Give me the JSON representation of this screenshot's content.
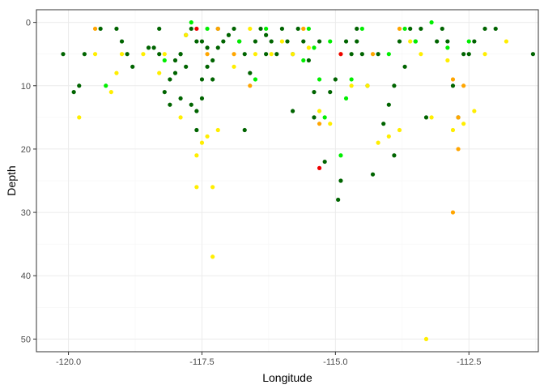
{
  "chart_data": {
    "type": "scatter",
    "xlabel": "Longitude",
    "ylabel": "Depth",
    "xlim": [
      -120.6,
      -111.2
    ],
    "ylim": [
      -2,
      52
    ],
    "y_reversed": true,
    "x_ticks": [
      -120.0,
      -117.5,
      -115.0,
      -112.5
    ],
    "x_tick_labels": [
      "-120.0",
      "-117.5",
      "-115.0",
      "-112.5"
    ],
    "y_ticks": [
      0,
      10,
      20,
      30,
      40,
      50
    ],
    "y_tick_labels": [
      "0",
      "10",
      "20",
      "30",
      "40",
      "50"
    ],
    "grid": true,
    "legend": "none",
    "colors": {
      "dark_green": "#006400",
      "lime": "#00ee00",
      "yellow": "#ffee00",
      "orange": "#ffa500",
      "red": "#ee0000",
      "panel_border": "#333333",
      "grid_major": "#ebebeb",
      "grid_minor": "#f5f5f5"
    },
    "series": [
      {
        "color": "dark_green",
        "points": [
          [
            -120.1,
            5
          ],
          [
            -119.9,
            11
          ],
          [
            -119.8,
            10
          ],
          [
            -119.7,
            5
          ],
          [
            -119.4,
            1
          ],
          [
            -119.1,
            1
          ],
          [
            -119.0,
            3
          ],
          [
            -118.9,
            5
          ],
          [
            -118.8,
            7
          ],
          [
            -118.5,
            4
          ],
          [
            -118.3,
            1
          ],
          [
            -118.4,
            4
          ],
          [
            -118.3,
            5
          ],
          [
            -118.2,
            11
          ],
          [
            -118.1,
            9
          ],
          [
            -118.0,
            6
          ],
          [
            -117.9,
            5
          ],
          [
            -117.8,
            7
          ],
          [
            -117.7,
            13
          ],
          [
            -117.6,
            17
          ],
          [
            -117.5,
            3
          ],
          [
            -117.4,
            4
          ],
          [
            -117.6,
            3
          ],
          [
            -117.7,
            1
          ],
          [
            -117.8,
            2
          ],
          [
            -118.0,
            8
          ],
          [
            -117.9,
            12
          ],
          [
            -117.6,
            14
          ],
          [
            -117.5,
            12
          ],
          [
            -117.4,
            7
          ],
          [
            -117.3,
            6
          ],
          [
            -117.2,
            4
          ],
          [
            -117.1,
            3
          ],
          [
            -117.0,
            2
          ],
          [
            -116.9,
            1
          ],
          [
            -116.8,
            3
          ],
          [
            -116.7,
            5
          ],
          [
            -116.6,
            8
          ],
          [
            -116.5,
            3
          ],
          [
            -116.4,
            1
          ],
          [
            -116.3,
            2
          ],
          [
            -116.2,
            3
          ],
          [
            -116.0,
            1
          ],
          [
            -115.9,
            3
          ],
          [
            -115.8,
            5
          ],
          [
            -115.7,
            1
          ],
          [
            -115.6,
            3
          ],
          [
            -115.5,
            6
          ],
          [
            -115.4,
            11
          ],
          [
            -115.3,
            3
          ],
          [
            -115.2,
            22
          ],
          [
            -115.1,
            11
          ],
          [
            -115.0,
            9
          ],
          [
            -114.9,
            25
          ],
          [
            -114.95,
            28
          ],
          [
            -114.8,
            3
          ],
          [
            -114.7,
            5
          ],
          [
            -114.6,
            1
          ],
          [
            -114.5,
            5
          ],
          [
            -114.4,
            10
          ],
          [
            -114.3,
            24
          ],
          [
            -114.2,
            5
          ],
          [
            -114.0,
            13
          ],
          [
            -113.9,
            21
          ],
          [
            -113.8,
            3
          ],
          [
            -113.7,
            7
          ],
          [
            -113.6,
            1
          ],
          [
            -113.5,
            3
          ],
          [
            -113.4,
            1
          ],
          [
            -113.3,
            15
          ],
          [
            -113.1,
            3
          ],
          [
            -113.0,
            1
          ],
          [
            -112.8,
            10
          ],
          [
            -112.7,
            15
          ],
          [
            -112.6,
            5
          ],
          [
            -112.4,
            3
          ],
          [
            -112.2,
            1
          ],
          [
            -112.0,
            1
          ],
          [
            -111.3,
            5
          ],
          [
            -116.7,
            17
          ],
          [
            -117.9,
            5
          ],
          [
            -117.5,
            9
          ],
          [
            -115.4,
            15
          ],
          [
            -114.1,
            16
          ],
          [
            -113.9,
            10
          ],
          [
            -115.8,
            14
          ],
          [
            -116.3,
            5
          ],
          [
            -114.6,
            3
          ],
          [
            -112.9,
            3
          ],
          [
            -112.5,
            5
          ],
          [
            -117.2,
            1
          ],
          [
            -117.3,
            9
          ],
          [
            -116.1,
            5
          ],
          [
            -118.1,
            13
          ]
        ]
      },
      {
        "color": "lime",
        "points": [
          [
            -119.3,
            10
          ],
          [
            -118.2,
            6
          ],
          [
            -117.7,
            0
          ],
          [
            -117.4,
            1
          ],
          [
            -116.5,
            9
          ],
          [
            -116.3,
            1
          ],
          [
            -115.6,
            6
          ],
          [
            -115.4,
            4
          ],
          [
            -115.3,
            9
          ],
          [
            -115.2,
            15
          ],
          [
            -115.1,
            3
          ],
          [
            -114.9,
            21
          ],
          [
            -114.8,
            12
          ],
          [
            -114.7,
            9
          ],
          [
            -114.5,
            1
          ],
          [
            -114.0,
            5
          ],
          [
            -113.7,
            1
          ],
          [
            -113.5,
            3
          ],
          [
            -113.2,
            0
          ],
          [
            -112.9,
            4
          ],
          [
            -112.5,
            3
          ],
          [
            -115.5,
            1
          ],
          [
            -116.8,
            3
          ]
        ]
      },
      {
        "color": "yellow",
        "points": [
          [
            -119.8,
            15
          ],
          [
            -119.5,
            5
          ],
          [
            -119.2,
            11
          ],
          [
            -119.1,
            8
          ],
          [
            -119.0,
            5
          ],
          [
            -118.6,
            5
          ],
          [
            -118.2,
            5
          ],
          [
            -117.8,
            2
          ],
          [
            -117.6,
            21
          ],
          [
            -117.6,
            26
          ],
          [
            -117.5,
            19
          ],
          [
            -117.4,
            18
          ],
          [
            -117.3,
            26
          ],
          [
            -117.3,
            37
          ],
          [
            -117.2,
            17
          ],
          [
            -116.9,
            7
          ],
          [
            -116.6,
            1
          ],
          [
            -116.2,
            5
          ],
          [
            -116.0,
            3
          ],
          [
            -115.8,
            5
          ],
          [
            -115.5,
            4
          ],
          [
            -115.3,
            14
          ],
          [
            -115.1,
            16
          ],
          [
            -114.9,
            5
          ],
          [
            -114.7,
            10
          ],
          [
            -114.4,
            10
          ],
          [
            -114.2,
            19
          ],
          [
            -114.0,
            18
          ],
          [
            -113.8,
            17
          ],
          [
            -113.6,
            3
          ],
          [
            -113.4,
            5
          ],
          [
            -113.3,
            50
          ],
          [
            -113.2,
            15
          ],
          [
            -112.9,
            6
          ],
          [
            -112.8,
            17
          ],
          [
            -112.6,
            16
          ],
          [
            -112.4,
            14
          ],
          [
            -112.2,
            5
          ],
          [
            -111.8,
            3
          ],
          [
            -117.9,
            15
          ],
          [
            -118.3,
            8
          ],
          [
            -116.5,
            5
          ],
          [
            -115.6,
            1
          ]
        ]
      },
      {
        "color": "orange",
        "points": [
          [
            -119.5,
            1
          ],
          [
            -117.4,
            5
          ],
          [
            -117.2,
            1
          ],
          [
            -116.6,
            10
          ],
          [
            -115.6,
            1
          ],
          [
            -115.3,
            16
          ],
          [
            -113.8,
            1
          ],
          [
            -112.8,
            9
          ],
          [
            -112.7,
            20
          ],
          [
            -112.8,
            30
          ],
          [
            -112.6,
            10
          ],
          [
            -112.7,
            15
          ],
          [
            -114.3,
            5
          ],
          [
            -116.9,
            5
          ]
        ]
      },
      {
        "color": "red",
        "points": [
          [
            -117.6,
            1
          ],
          [
            -115.3,
            23
          ],
          [
            -114.9,
            5
          ]
        ]
      }
    ]
  }
}
